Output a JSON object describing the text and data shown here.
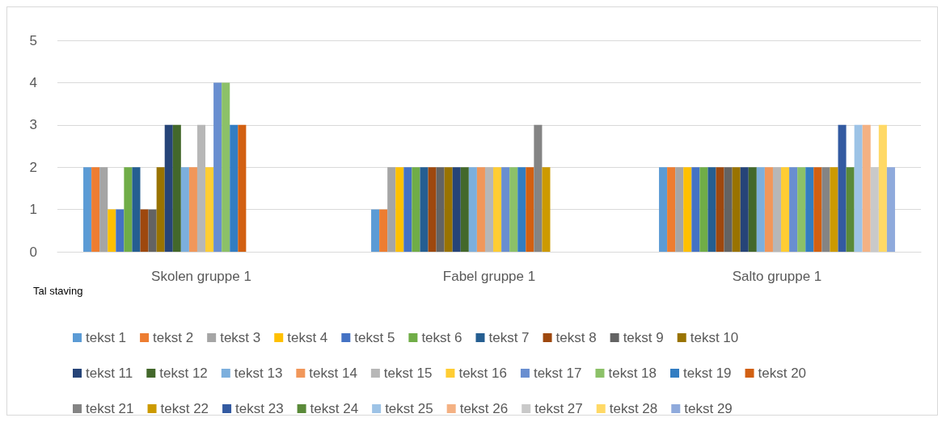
{
  "chart_data": {
    "type": "bar",
    "categories": [
      "Skolen gruppe 1",
      "Fabel gruppe 1",
      "Salto gruppe 1"
    ],
    "ylim": [
      0,
      5
    ],
    "yticks": [
      0,
      1,
      2,
      3,
      4,
      5
    ],
    "grid": "y",
    "legend": "bottom",
    "annotations": [
      "Tal staving"
    ],
    "series": [
      {
        "name": "tekst 1",
        "color": "#5b9bd5",
        "values": [
          2,
          1,
          2
        ]
      },
      {
        "name": "tekst 2",
        "color": "#ed7d31",
        "values": [
          2,
          1,
          2
        ]
      },
      {
        "name": "tekst 3",
        "color": "#a5a5a5",
        "values": [
          2,
          2,
          2
        ]
      },
      {
        "name": "tekst 4",
        "color": "#ffc000",
        "values": [
          1,
          2,
          2
        ]
      },
      {
        "name": "tekst 5",
        "color": "#4472c4",
        "values": [
          1,
          2,
          2
        ]
      },
      {
        "name": "tekst 6",
        "color": "#70ad47",
        "values": [
          2,
          2,
          2
        ]
      },
      {
        "name": "tekst 7",
        "color": "#255e91",
        "values": [
          2,
          2,
          2
        ]
      },
      {
        "name": "tekst 8",
        "color": "#9e480e",
        "values": [
          1,
          2,
          2
        ]
      },
      {
        "name": "tekst 9",
        "color": "#636363",
        "values": [
          1,
          2,
          2
        ]
      },
      {
        "name": "tekst 10",
        "color": "#997300",
        "values": [
          2,
          2,
          2
        ]
      },
      {
        "name": "tekst 11",
        "color": "#264478",
        "values": [
          3,
          2,
          2
        ]
      },
      {
        "name": "tekst 12",
        "color": "#43682b",
        "values": [
          3,
          2,
          2
        ]
      },
      {
        "name": "tekst 13",
        "color": "#7cafdd",
        "values": [
          2,
          2,
          2
        ]
      },
      {
        "name": "tekst 14",
        "color": "#f1975a",
        "values": [
          2,
          2,
          2
        ]
      },
      {
        "name": "tekst 15",
        "color": "#b7b7b7",
        "values": [
          3,
          2,
          2
        ]
      },
      {
        "name": "tekst 16",
        "color": "#ffcd33",
        "values": [
          2,
          2,
          2
        ]
      },
      {
        "name": "tekst 17",
        "color": "#698ed0",
        "values": [
          4,
          2,
          2
        ]
      },
      {
        "name": "tekst 18",
        "color": "#8cc168",
        "values": [
          4,
          2,
          2
        ]
      },
      {
        "name": "tekst 19",
        "color": "#327dc2",
        "values": [
          3,
          2,
          2
        ]
      },
      {
        "name": "tekst 20",
        "color": "#d26012",
        "values": [
          3,
          2,
          2
        ]
      },
      {
        "name": "tekst 21",
        "color": "#848484",
        "values": [
          null,
          3,
          2
        ]
      },
      {
        "name": "tekst 22",
        "color": "#cc9a00",
        "values": [
          null,
          2,
          2
        ]
      },
      {
        "name": "tekst 23",
        "color": "#335aa1",
        "values": [
          null,
          null,
          3
        ]
      },
      {
        "name": "tekst 24",
        "color": "#5a8a39",
        "values": [
          null,
          null,
          2
        ]
      },
      {
        "name": "tekst 25",
        "color": "#9dc3e6",
        "values": [
          null,
          null,
          3
        ]
      },
      {
        "name": "tekst 26",
        "color": "#f4b183",
        "values": [
          null,
          null,
          3
        ]
      },
      {
        "name": "tekst 27",
        "color": "#c9c9c9",
        "values": [
          null,
          null,
          2
        ]
      },
      {
        "name": "tekst 28",
        "color": "#ffd966",
        "values": [
          null,
          null,
          3
        ]
      },
      {
        "name": "tekst 29",
        "color": "#8faadc",
        "values": [
          null,
          null,
          2
        ]
      }
    ]
  }
}
